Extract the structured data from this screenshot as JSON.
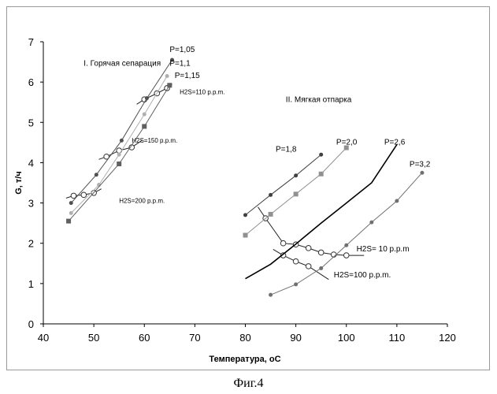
{
  "caption": "Фиг.4",
  "chart_data": {
    "type": "scatter",
    "title": "",
    "xlabel": "Температура, оС",
    "ylabel": "G, т/ч",
    "xlim": [
      40,
      120
    ],
    "ylim": [
      0,
      7
    ],
    "xticks": [
      40,
      50,
      60,
      70,
      80,
      90,
      100,
      110,
      120
    ],
    "yticks": [
      0,
      1,
      2,
      3,
      4,
      5,
      6,
      7
    ],
    "grid": false,
    "legend": "none",
    "regions": [
      {
        "label": "I. Горячая сепарация",
        "x": 48,
        "y": 6.4
      },
      {
        "label": "II. Мягкая отпарка",
        "x": 88,
        "y": 5.5
      }
    ],
    "series": [
      {
        "name": "P=1,05",
        "style": "dot",
        "color": "#505050",
        "points": [
          [
            45.5,
            3.0
          ],
          [
            50.5,
            3.7
          ],
          [
            55.5,
            4.55
          ],
          [
            60.5,
            5.6
          ],
          [
            65.5,
            6.55
          ]
        ],
        "label": {
          "text": "P=1,05",
          "x": 65.0,
          "y": 6.75
        }
      },
      {
        "name": "P=1,1",
        "style": "dot",
        "color": "#b0b0b0",
        "points": [
          [
            45.5,
            2.75
          ],
          [
            51.0,
            3.45
          ],
          [
            55.0,
            4.2
          ],
          [
            60.0,
            5.2
          ],
          [
            64.5,
            6.15
          ]
        ],
        "label": {
          "text": "P=1,1",
          "x": 65.0,
          "y": 6.4
        }
      },
      {
        "name": "P=1,15",
        "style": "square",
        "color": "#606060",
        "points": [
          [
            45.0,
            2.55
          ],
          [
            55.0,
            3.97
          ],
          [
            60.0,
            4.9
          ],
          [
            65.0,
            5.92
          ]
        ],
        "label": {
          "text": "P=1,15",
          "x": 66.0,
          "y": 6.1
        }
      },
      {
        "name": "P=1,8",
        "style": "dot",
        "color": "#404040",
        "points": [
          [
            80.0,
            2.7
          ],
          [
            85.0,
            3.2
          ],
          [
            90.0,
            3.68
          ],
          [
            95.0,
            4.2
          ]
        ],
        "label": {
          "text": "P=1,8",
          "x": 86.0,
          "y": 4.27
        }
      },
      {
        "name": "P=2,0",
        "style": "square",
        "color": "#909090",
        "points": [
          [
            80.0,
            2.2
          ],
          [
            85.0,
            2.72
          ],
          [
            90.0,
            3.22
          ],
          [
            95.0,
            3.72
          ],
          [
            100.0,
            4.37
          ]
        ],
        "label": {
          "text": "P=2,0",
          "x": 98.0,
          "y": 4.45
        }
      },
      {
        "name": "P=2,6",
        "style": "line",
        "color": "#000000",
        "points": [
          [
            80.0,
            1.12
          ],
          [
            85.0,
            1.48
          ],
          [
            90.0,
            1.98
          ],
          [
            95.0,
            2.5
          ],
          [
            100.0,
            3.0
          ],
          [
            105.0,
            3.5
          ],
          [
            110.0,
            4.45
          ]
        ],
        "label": {
          "text": "P=2,6",
          "x": 107.5,
          "y": 4.45
        }
      },
      {
        "name": "P=3,2",
        "style": "dot",
        "color": "#707070",
        "points": [
          [
            85.0,
            0.72
          ],
          [
            90.0,
            0.98
          ],
          [
            95.0,
            1.38
          ],
          [
            100.0,
            1.95
          ],
          [
            105.0,
            2.52
          ],
          [
            110.0,
            3.05
          ],
          [
            115.0,
            3.75
          ]
        ],
        "label": {
          "text": "P=3,2",
          "x": 112.5,
          "y": 3.9
        }
      }
    ],
    "isolines": [
      {
        "name": "H2S=110 p.p.m.",
        "points": [
          [
            60.0,
            5.57
          ],
          [
            62.5,
            5.72
          ],
          [
            64.5,
            5.85
          ]
        ],
        "ext": [
          [
            58.5,
            5.45
          ],
          [
            65.5,
            5.95
          ]
        ],
        "label": {
          "text": "H2S=110 p.p.m.",
          "x": 67.0,
          "y": 5.7
        }
      },
      {
        "name": "H2S=150 p.p.m.",
        "points": [
          [
            52.5,
            4.15
          ],
          [
            55.0,
            4.3
          ],
          [
            57.5,
            4.38
          ]
        ],
        "ext": [
          [
            51.0,
            4.08
          ],
          [
            59.5,
            4.55
          ]
        ],
        "label": {
          "text": "H2S=150 p.p.m.",
          "x": 57.5,
          "y": 4.5
        }
      },
      {
        "name": "H2S=200 p.p.m.",
        "points": [
          [
            46.0,
            3.18
          ],
          [
            48.0,
            3.2
          ],
          [
            50.0,
            3.25
          ]
        ],
        "ext": [
          [
            44.5,
            3.12
          ],
          [
            51.5,
            3.35
          ]
        ],
        "label": {
          "text": "H2S=200 p.p.m.",
          "x": 55.0,
          "y": 3.0
        }
      },
      {
        "name": "H2S= 10 p.p.m",
        "points": [
          [
            84.0,
            2.62
          ],
          [
            87.5,
            2.0
          ],
          [
            90.0,
            1.97
          ],
          [
            92.5,
            1.88
          ],
          [
            95.0,
            1.77
          ],
          [
            97.5,
            1.72
          ],
          [
            100.0,
            1.7
          ]
        ],
        "ext": [
          [
            82.5,
            2.9
          ],
          [
            103.5,
            1.7
          ]
        ],
        "label": {
          "text": "H2S= 10 p.p.m",
          "x": 102.0,
          "y": 1.8
        }
      },
      {
        "name": "H2S=100 p.p.m.",
        "points": [
          [
            87.5,
            1.7
          ],
          [
            90.0,
            1.55
          ],
          [
            92.5,
            1.43
          ]
        ],
        "ext": [
          [
            85.5,
            1.85
          ],
          [
            96.5,
            1.1
          ]
        ],
        "label": {
          "text": "H2S=100 p.p.m.",
          "x": 97.5,
          "y": 1.15
        }
      }
    ]
  }
}
